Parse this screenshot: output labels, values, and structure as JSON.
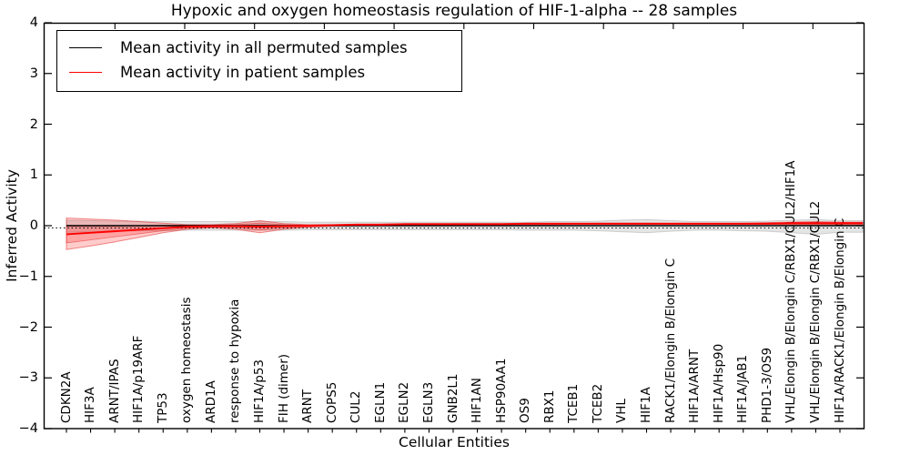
{
  "title": "Hypoxic and oxygen homeostasis regulation of HIF-1-alpha -- 28 samples",
  "axes": {
    "xlabel": "Cellular Entities",
    "ylabel": "Inferred Activity"
  },
  "legend": {
    "items": [
      {
        "label": "Mean activity in all permuted samples",
        "color": "#000000"
      },
      {
        "label": "Mean activity in patient samples",
        "color": "#ff0000"
      }
    ]
  },
  "chart_data": {
    "type": "line",
    "title": "Hypoxic and oxygen homeostasis regulation of HIF-1-alpha -- 28 samples",
    "xlabel": "Cellular Entities",
    "ylabel": "Inferred Activity",
    "ylim": [
      -4,
      4
    ],
    "yticks": [
      4,
      3,
      2,
      1,
      0,
      -1,
      -2,
      -3,
      -4
    ],
    "ytick_labels": [
      "4",
      "3",
      "2",
      "1",
      "0",
      "−1",
      "−2",
      "−3",
      "−4"
    ],
    "grid": false,
    "legend_position": "upper left",
    "baseline": {
      "value": 0,
      "style": "dotted",
      "color": "#000000"
    },
    "categories": [
      "CDKN2A",
      "HIF3A",
      "ARNT/IPAS",
      "HIF1A/p19ARF",
      "TP53",
      "oxygen homeostasis",
      "ARD1A",
      "response to hypoxia",
      "HIF1A/p53",
      "FIH (dimer)",
      "ARNT",
      "COPS5",
      "CUL2",
      "EGLN1",
      "EGLN2",
      "EGLN3",
      "GNB2L1",
      "HIF1AN",
      "HSP90AA1",
      "OS9",
      "RBX1",
      "TCEB1",
      "TCEB2",
      "VHL",
      "HIF1A",
      "RACK1/Elongin B/Elongin C",
      "HIF1A/ARNT",
      "HIF1A/Hsp90",
      "HIF1A/JAB1",
      "PHD1-3/OS9",
      "VHL/Elongin B/Elongin C/RBX1/CUL2/HIF1A",
      "VHL/Elongin B/Elongin C/RBX1/CUL2",
      "HIF1A/RACK1/Elongin B/Elongin C"
    ],
    "series": [
      {
        "name": "Mean activity in all permuted samples",
        "color": "#000000",
        "band_fill": "rgba(0,0,0,0.10)",
        "band_edge": "rgba(0,0,0,0.15)",
        "values": [
          0,
          0,
          0,
          0,
          0,
          0,
          0,
          0,
          0,
          0,
          0,
          0,
          0,
          0,
          0,
          0,
          0,
          0,
          0,
          0,
          0,
          0,
          0,
          0,
          0,
          0,
          0,
          0,
          0,
          0,
          0,
          0,
          0
        ],
        "band_upper": [
          0.11,
          0.1,
          0.09,
          0.09,
          0.08,
          0.08,
          0.08,
          0.08,
          0.08,
          0.08,
          0.07,
          0.07,
          0.07,
          0.07,
          0.07,
          0.07,
          0.07,
          0.07,
          0.07,
          0.07,
          0.08,
          0.08,
          0.09,
          0.11,
          0.12,
          0.1,
          0.08,
          0.08,
          0.08,
          0.09,
          0.11,
          0.12,
          0.1
        ],
        "band_lower": [
          -0.13,
          -0.12,
          -0.11,
          -0.1,
          -0.1,
          -0.09,
          -0.09,
          -0.09,
          -0.09,
          -0.09,
          -0.08,
          -0.08,
          -0.08,
          -0.08,
          -0.08,
          -0.08,
          -0.08,
          -0.08,
          -0.08,
          -0.09,
          -0.09,
          -0.09,
          -0.1,
          -0.12,
          -0.14,
          -0.11,
          -0.09,
          -0.09,
          -0.1,
          -0.11,
          -0.14,
          -0.17,
          -0.13
        ]
      },
      {
        "name": "Mean activity in patient samples",
        "color": "#ff0000",
        "band_fill": "rgba(255,0,0,0.20)",
        "band_edge": "rgba(225,30,30,0.50)",
        "values": [
          -0.17,
          -0.14,
          -0.11,
          -0.08,
          -0.05,
          -0.02,
          -0.01,
          -0.01,
          -0.02,
          -0.01,
          0.0,
          0.01,
          0.02,
          0.02,
          0.03,
          0.03,
          0.03,
          0.03,
          0.03,
          0.04,
          0.04,
          0.04,
          0.04,
          0.04,
          0.04,
          0.04,
          0.04,
          0.04,
          0.04,
          0.04,
          0.05,
          0.05,
          0.05
        ],
        "band_upper": [
          0.15,
          0.13,
          0.11,
          0.08,
          0.05,
          0.02,
          0.02,
          0.04,
          0.1,
          0.04,
          0.02,
          0.02,
          0.03,
          0.03,
          0.04,
          0.04,
          0.04,
          0.04,
          0.04,
          0.05,
          0.05,
          0.05,
          0.05,
          0.05,
          0.05,
          0.05,
          0.05,
          0.05,
          0.05,
          0.06,
          0.07,
          0.08,
          0.07
        ],
        "band_lower": [
          -0.47,
          -0.4,
          -0.32,
          -0.23,
          -0.14,
          -0.07,
          -0.04,
          -0.07,
          -0.14,
          -0.07,
          -0.03,
          -0.01,
          0.0,
          0.0,
          0.01,
          0.01,
          0.01,
          0.02,
          0.02,
          0.02,
          0.02,
          0.03,
          0.03,
          0.03,
          0.03,
          0.03,
          0.03,
          0.03,
          0.03,
          0.03,
          0.02,
          0.02,
          0.02
        ],
        "band_inner_upper": [
          -0.01,
          -0.01,
          -0.01,
          0.0,
          0.01,
          0.01,
          0.01,
          0.02,
          0.05,
          0.02,
          0.01,
          0.02,
          0.02,
          0.03,
          0.03,
          0.03,
          0.04,
          0.04,
          0.04,
          0.04,
          0.04,
          0.04,
          0.05,
          0.05,
          0.05,
          0.04,
          0.04,
          0.04,
          0.05,
          0.05,
          0.06,
          0.06,
          0.06
        ],
        "band_inner_lower": [
          -0.34,
          -0.28,
          -0.22,
          -0.16,
          -0.1,
          -0.05,
          -0.03,
          -0.04,
          -0.09,
          -0.04,
          -0.02,
          0.0,
          0.01,
          0.01,
          0.02,
          0.02,
          0.02,
          0.03,
          0.03,
          0.03,
          0.03,
          0.03,
          0.03,
          0.03,
          0.03,
          0.03,
          0.03,
          0.03,
          0.03,
          0.03,
          0.03,
          0.03,
          0.03
        ]
      }
    ]
  }
}
